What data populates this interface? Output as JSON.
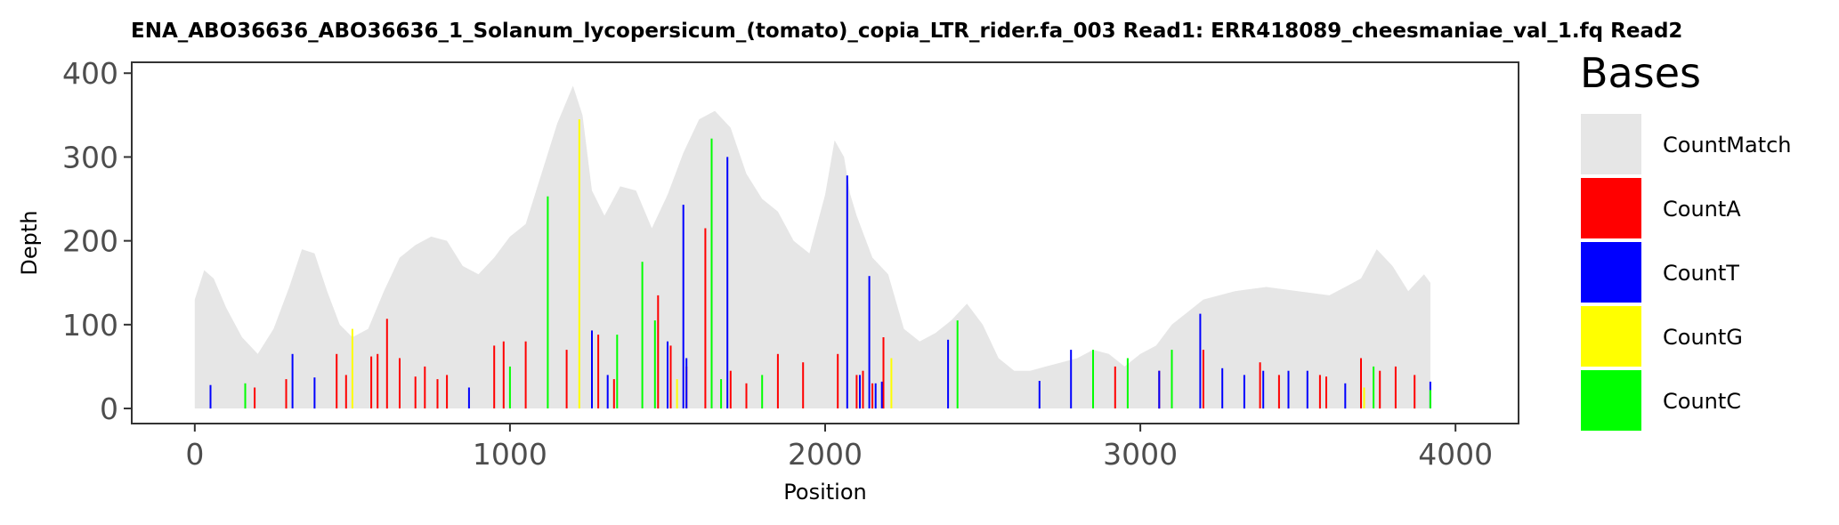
{
  "chart_data": {
    "type": "bar",
    "title": "ENA_ABO36636_ABO36636_1_Solanum_lycopersicum_(tomato)_copia_LTR_rider.fa_003   Read1: ERR418089_cheesmaniae_val_1.fq   Read2",
    "xlabel": "Position",
    "ylabel": "Depth",
    "xlim": [
      -200,
      4200
    ],
    "ylim": [
      -18,
      413
    ],
    "xticks": [
      0,
      1000,
      2000,
      3000,
      4000
    ],
    "yticks": [
      0,
      100,
      200,
      300,
      400
    ],
    "grid": false,
    "legend_position": "right",
    "legend_title": "Bases",
    "colors": {
      "CountMatch": "#e6e6e6",
      "CountA": "#ff0000",
      "CountT": "#0000ff",
      "CountG": "#ffff00",
      "CountC": "#00ff00"
    },
    "legend": [
      "CountMatch",
      "CountA",
      "CountT",
      "CountG",
      "CountC"
    ],
    "match_profile": {
      "x": [
        0,
        30,
        60,
        100,
        150,
        200,
        250,
        300,
        340,
        380,
        420,
        460,
        500,
        550,
        600,
        650,
        700,
        750,
        800,
        850,
        900,
        950,
        1000,
        1050,
        1100,
        1150,
        1200,
        1230,
        1260,
        1300,
        1350,
        1400,
        1450,
        1500,
        1550,
        1600,
        1650,
        1700,
        1750,
        1800,
        1850,
        1900,
        1950,
        2000,
        2030,
        2060,
        2080,
        2100,
        2150,
        2200,
        2250,
        2300,
        2350,
        2400,
        2450,
        2500,
        2550,
        2600,
        2650,
        2700,
        2750,
        2800,
        2850,
        2900,
        2950,
        3000,
        3050,
        3100,
        3150,
        3200,
        3300,
        3400,
        3500,
        3600,
        3650,
        3700,
        3750,
        3800,
        3850,
        3900,
        3920
      ],
      "y": [
        130,
        165,
        155,
        120,
        85,
        65,
        95,
        145,
        190,
        185,
        140,
        100,
        85,
        95,
        140,
        180,
        195,
        205,
        200,
        170,
        160,
        180,
        205,
        220,
        280,
        340,
        385,
        350,
        260,
        230,
        265,
        260,
        215,
        255,
        305,
        345,
        355,
        335,
        280,
        250,
        235,
        200,
        185,
        255,
        320,
        300,
        255,
        230,
        180,
        160,
        95,
        80,
        90,
        105,
        125,
        100,
        60,
        45,
        45,
        50,
        55,
        60,
        70,
        65,
        50,
        65,
        75,
        100,
        115,
        130,
        140,
        145,
        140,
        135,
        145,
        155,
        190,
        170,
        140,
        160,
        150
      ]
    },
    "series": [
      {
        "name": "CountA",
        "x": [
          190,
          290,
          450,
          480,
          560,
          580,
          610,
          650,
          700,
          730,
          770,
          800,
          950,
          980,
          1050,
          1180,
          1280,
          1330,
          1470,
          1510,
          1560,
          1620,
          1700,
          1750,
          1850,
          1930,
          2040,
          2100,
          2120,
          2150,
          2185,
          2920,
          3060,
          3200,
          3380,
          3440,
          3570,
          3590,
          3700,
          3760,
          3810,
          3870
        ],
        "y": [
          25,
          35,
          65,
          40,
          62,
          65,
          107,
          60,
          38,
          50,
          35,
          40,
          75,
          80,
          80,
          70,
          88,
          35,
          135,
          75,
          50,
          215,
          45,
          30,
          65,
          55,
          65,
          40,
          45,
          30,
          85,
          50,
          45,
          70,
          55,
          40,
          40,
          38,
          60,
          45,
          50,
          40
        ]
      },
      {
        "name": "CountT",
        "x": [
          50,
          310,
          380,
          870,
          1260,
          1310,
          1500,
          1550,
          1560,
          1690,
          2070,
          2110,
          2140,
          2160,
          2180,
          2390,
          2680,
          2780,
          3060,
          3190,
          3260,
          3330,
          3390,
          3470,
          3530,
          3650,
          3920
        ],
        "y": [
          28,
          65,
          37,
          25,
          93,
          40,
          80,
          243,
          60,
          300,
          278,
          40,
          158,
          30,
          32,
          82,
          33,
          70,
          45,
          113,
          48,
          40,
          45,
          45,
          45,
          30,
          32
        ]
      },
      {
        "name": "CountG",
        "x": [
          500,
          1220,
          1530,
          2210,
          3710
        ],
        "y": [
          95,
          345,
          35,
          60,
          25
        ]
      },
      {
        "name": "CountC",
        "x": [
          160,
          1000,
          1120,
          1340,
          1420,
          1460,
          1640,
          1670,
          1800,
          2420,
          2850,
          2960,
          3100,
          3740,
          3920
        ],
        "y": [
          30,
          50,
          253,
          88,
          175,
          105,
          322,
          35,
          40,
          105,
          70,
          60,
          70,
          50,
          22
        ]
      }
    ]
  }
}
